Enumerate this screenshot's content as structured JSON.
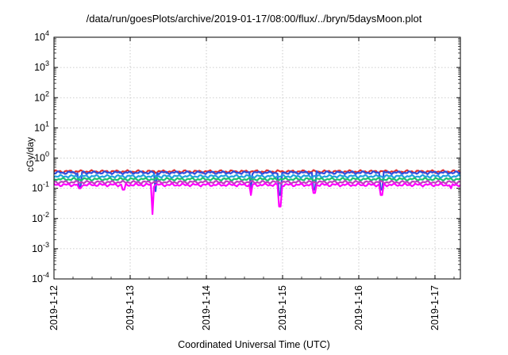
{
  "title": "/data/run/goesPlots/archive/2019-01-17/08:00/flux/../bryn/5daysMoon.plot",
  "chart_data": {
    "type": "line",
    "title": "/data/run/goesPlots/archive/2019-01-17/08:00/flux/../bryn/5daysMoon.plot",
    "xlabel": "Coordinated Universal Time (UTC)",
    "ylabel": "cGy/day",
    "yscale": "log",
    "ylim": [
      0.0001,
      10000
    ],
    "xlim": [
      "2019-01-12 00:00",
      "2019-01-17 08:00"
    ],
    "grid": true,
    "xticks": [
      "2019-1-12",
      "2019-1-13",
      "2019-1-14",
      "2019-1-15",
      "2019-1-16",
      "2019-1-17"
    ],
    "yticks": [
      {
        "base": "10",
        "exp": "-4"
      },
      {
        "base": "10",
        "exp": "-3"
      },
      {
        "base": "10",
        "exp": "-2"
      },
      {
        "base": "10",
        "exp": "-1"
      },
      {
        "base": "10",
        "exp": "0"
      },
      {
        "base": "10",
        "exp": "1"
      },
      {
        "base": "10",
        "exp": "2"
      },
      {
        "base": "10",
        "exp": "3"
      },
      {
        "base": "10",
        "exp": "4"
      }
    ],
    "series": [
      {
        "color": "#e03030",
        "level": 0.36,
        "dips": []
      },
      {
        "color": "#3050e0",
        "level": 0.33,
        "dips": [
          [
            "2019-01-12 08:00",
            0.11
          ],
          [
            "2019-01-13 08:00",
            0.08
          ],
          [
            "2019-01-14 14:00",
            0.1
          ],
          [
            "2019-01-14 23:00",
            0.06
          ],
          [
            "2019-01-15 10:00",
            0.09
          ],
          [
            "2019-01-16 07:00",
            0.09
          ]
        ]
      },
      {
        "color": "#20a0e0",
        "level": 0.25,
        "dips": []
      },
      {
        "color": "#20c070",
        "level": 0.2,
        "dips": []
      },
      {
        "color": "#c040c0",
        "level": 0.16,
        "dips": []
      },
      {
        "color": "#ff00ff",
        "level": 0.13,
        "dips": [
          [
            "2019-01-12 08:00",
            0.1
          ],
          [
            "2019-01-12 22:00",
            0.09
          ],
          [
            "2019-01-13 07:00",
            0.014
          ],
          [
            "2019-01-14 14:00",
            0.06
          ],
          [
            "2019-01-14 23:00",
            0.025
          ],
          [
            "2019-01-15 10:00",
            0.07
          ],
          [
            "2019-01-16 07:00",
            0.06
          ],
          [
            "2019-01-17 05:00",
            0.1
          ]
        ]
      }
    ]
  }
}
